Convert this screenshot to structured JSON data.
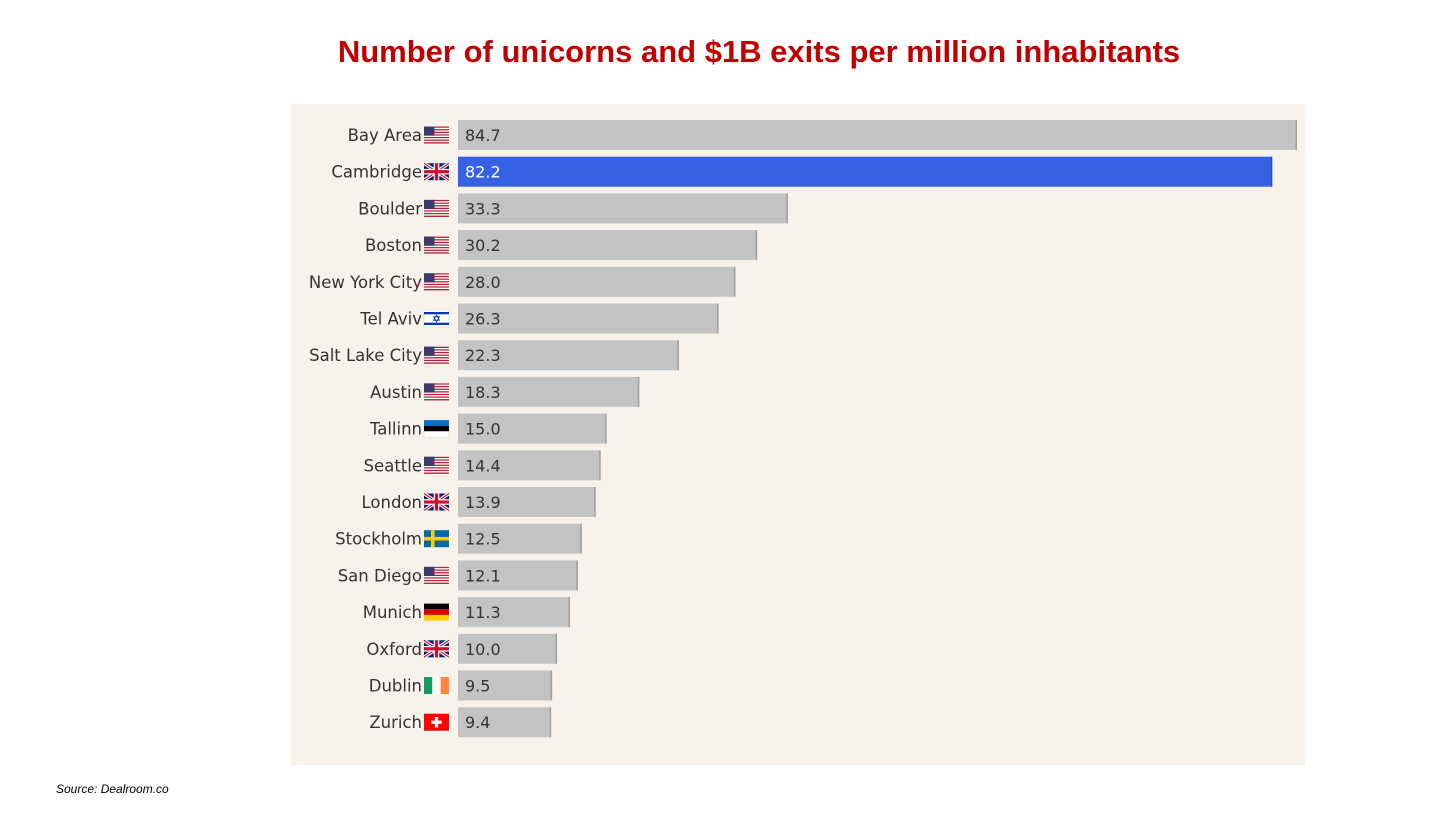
{
  "slide": {
    "title": "Number of unicorns and $1B exits per million inhabitants",
    "source": "Source: Dealroom.co"
  },
  "colors": {
    "title": "#c00000",
    "panel_background": "#f7f3ec",
    "bar_default": "#c3c3c3",
    "bar_highlight": "#3662e3",
    "label_text": "#333333"
  },
  "chart_data": {
    "type": "bar",
    "orientation": "horizontal",
    "title": "",
    "xlabel": "",
    "ylabel": "",
    "xlim": [
      0,
      84.7
    ],
    "grid": false,
    "legend": "none",
    "highlight_category": "Cambridge",
    "categories": [
      "Bay Area",
      "Cambridge",
      "Boulder",
      "Boston",
      "New York City",
      "Tel Aviv",
      "Salt Lake City",
      "Austin",
      "Tallinn",
      "Seattle",
      "London",
      "Stockholm",
      "San Diego",
      "Munich",
      "Oxford",
      "Dublin",
      "Zurich"
    ],
    "flags": [
      "us-flag",
      "uk-flag",
      "us-flag",
      "us-flag",
      "us-flag",
      "israel-flag",
      "us-flag",
      "us-flag",
      "estonia-flag",
      "us-flag",
      "uk-flag",
      "sweden-flag",
      "us-flag",
      "germany-flag",
      "uk-flag",
      "ireland-flag",
      "switzerland-flag"
    ],
    "values": [
      84.7,
      82.2,
      33.3,
      30.2,
      28.0,
      26.3,
      22.3,
      18.3,
      15.0,
      14.4,
      13.9,
      12.5,
      12.1,
      11.3,
      10.0,
      9.5,
      9.4
    ],
    "value_labels": [
      "84.7",
      "82.2",
      "33.3",
      "30.2",
      "28.0",
      "26.3",
      "22.3",
      "18.3",
      "15.0",
      "14.4",
      "13.9",
      "12.5",
      "12.1",
      "11.3",
      "10.0",
      "9.5",
      "9.4"
    ]
  }
}
